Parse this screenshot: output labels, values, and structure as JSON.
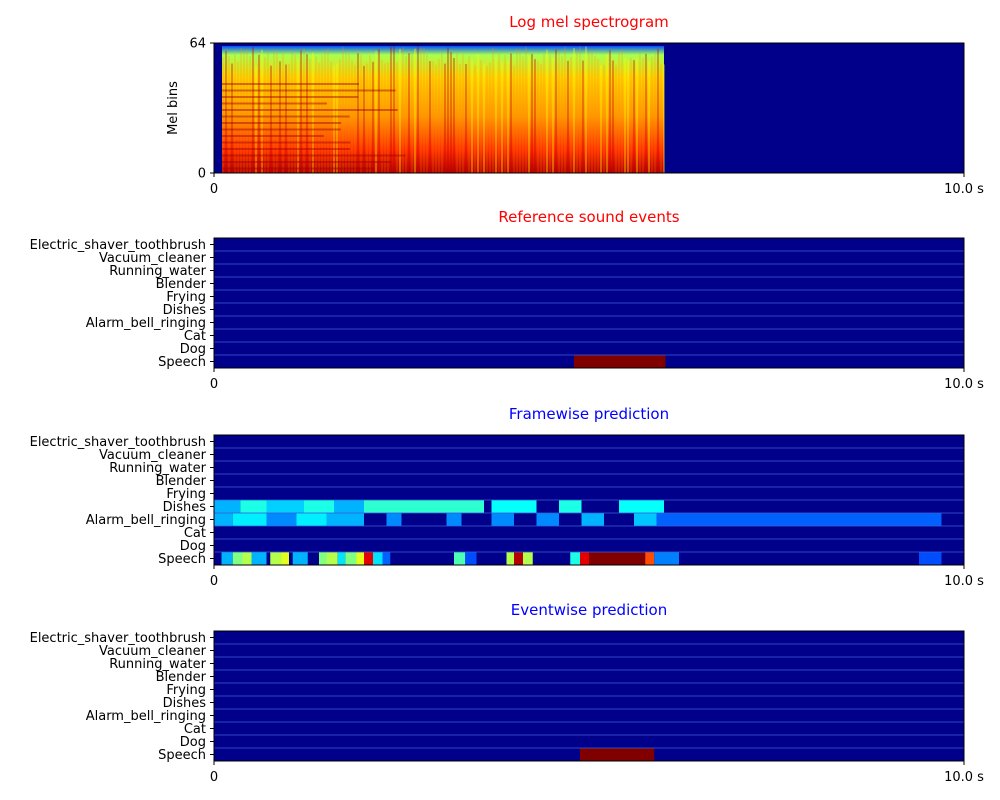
{
  "colors": {
    "background": "#00008b",
    "row_line": "#3d5bd4",
    "title_reference": "#ff0000",
    "title_prediction": "#0000ff",
    "axis": "#000000",
    "text": "#000000"
  },
  "chart_data": [
    {
      "type": "heatmap",
      "title": "Log mel spectrogram",
      "ylabel": "Mel bins",
      "yticks": [
        "64",
        "0"
      ],
      "xticks": [
        "0",
        "10.0 s"
      ],
      "xlim": [
        0,
        10.0
      ],
      "ylim": [
        0,
        64
      ],
      "audio_end_s": 6.0,
      "content": "spectrogram energy present from 0 s to ~6.0 s, silence (minimum) afterwards"
    },
    {
      "type": "heatmap",
      "title": "Reference sound events",
      "categories": [
        "Electric_shaver_toothbrush",
        "Vacuum_cleaner",
        "Running_water",
        "Blender",
        "Frying",
        "Dishes",
        "Alarm_bell_ringing",
        "Cat",
        "Dog",
        "Speech"
      ],
      "xticks": [
        "0",
        "10.0 s"
      ],
      "xlim": [
        0,
        10.0
      ],
      "events": [
        {
          "label": "Speech",
          "start": 4.8,
          "end": 6.02,
          "value": 1.0
        }
      ]
    },
    {
      "type": "heatmap",
      "title": "Framewise prediction",
      "categories": [
        "Electric_shaver_toothbrush",
        "Vacuum_cleaner",
        "Running_water",
        "Blender",
        "Frying",
        "Dishes",
        "Alarm_bell_ringing",
        "Cat",
        "Dog",
        "Speech"
      ],
      "xticks": [
        "0",
        "10.0 s"
      ],
      "xlim": [
        0,
        10.0
      ],
      "events": [
        {
          "label": "Dishes",
          "start": 0.0,
          "end": 0.35,
          "value": 0.3
        },
        {
          "label": "Dishes",
          "start": 0.35,
          "end": 0.7,
          "value": 0.4
        },
        {
          "label": "Dishes",
          "start": 0.7,
          "end": 1.2,
          "value": 0.33
        },
        {
          "label": "Dishes",
          "start": 1.2,
          "end": 1.6,
          "value": 0.4
        },
        {
          "label": "Dishes",
          "start": 1.6,
          "end": 2.0,
          "value": 0.3
        },
        {
          "label": "Dishes",
          "start": 2.0,
          "end": 3.6,
          "value": 0.42
        },
        {
          "label": "Dishes",
          "start": 3.7,
          "end": 4.3,
          "value": 0.38
        },
        {
          "label": "Dishes",
          "start": 4.6,
          "end": 4.9,
          "value": 0.4
        },
        {
          "label": "Dishes",
          "start": 5.4,
          "end": 6.0,
          "value": 0.38
        },
        {
          "label": "Alarm_bell_ringing",
          "start": 0.0,
          "end": 0.25,
          "value": 0.3
        },
        {
          "label": "Alarm_bell_ringing",
          "start": 0.25,
          "end": 0.7,
          "value": 0.36
        },
        {
          "label": "Alarm_bell_ringing",
          "start": 0.7,
          "end": 1.1,
          "value": 0.26
        },
        {
          "label": "Alarm_bell_ringing",
          "start": 1.1,
          "end": 1.5,
          "value": 0.36
        },
        {
          "label": "Alarm_bell_ringing",
          "start": 1.5,
          "end": 2.0,
          "value": 0.3
        },
        {
          "label": "Alarm_bell_ringing",
          "start": 2.3,
          "end": 2.5,
          "value": 0.26
        },
        {
          "label": "Alarm_bell_ringing",
          "start": 3.1,
          "end": 3.3,
          "value": 0.26
        },
        {
          "label": "Alarm_bell_ringing",
          "start": 3.7,
          "end": 4.0,
          "value": 0.26
        },
        {
          "label": "Alarm_bell_ringing",
          "start": 4.3,
          "end": 4.6,
          "value": 0.26
        },
        {
          "label": "Alarm_bell_ringing",
          "start": 4.9,
          "end": 5.2,
          "value": 0.3
        },
        {
          "label": "Alarm_bell_ringing",
          "start": 5.6,
          "end": 5.9,
          "value": 0.32
        },
        {
          "label": "Alarm_bell_ringing",
          "start": 5.9,
          "end": 9.7,
          "value": 0.22
        },
        {
          "label": "Speech",
          "start": 0.1,
          "end": 0.25,
          "value": 0.3
        },
        {
          "label": "Speech",
          "start": 0.25,
          "end": 0.38,
          "value": 0.5
        },
        {
          "label": "Speech",
          "start": 0.38,
          "end": 0.5,
          "value": 0.55
        },
        {
          "label": "Speech",
          "start": 0.5,
          "end": 0.7,
          "value": 0.3
        },
        {
          "label": "Speech",
          "start": 0.75,
          "end": 0.9,
          "value": 0.55
        },
        {
          "label": "Speech",
          "start": 0.9,
          "end": 1.0,
          "value": 0.6
        },
        {
          "label": "Speech",
          "start": 1.05,
          "end": 1.25,
          "value": 0.3
        },
        {
          "label": "Speech",
          "start": 1.4,
          "end": 1.5,
          "value": 0.5
        },
        {
          "label": "Speech",
          "start": 1.5,
          "end": 1.65,
          "value": 0.55
        },
        {
          "label": "Speech",
          "start": 1.65,
          "end": 1.75,
          "value": 0.35
        },
        {
          "label": "Speech",
          "start": 1.75,
          "end": 1.9,
          "value": 0.5
        },
        {
          "label": "Speech",
          "start": 1.9,
          "end": 2.0,
          "value": 0.6
        },
        {
          "label": "Speech",
          "start": 2.0,
          "end": 2.12,
          "value": 0.9
        },
        {
          "label": "Speech",
          "start": 2.12,
          "end": 2.25,
          "value": 0.35
        },
        {
          "label": "Speech",
          "start": 2.25,
          "end": 2.35,
          "value": 0.22
        },
        {
          "label": "Speech",
          "start": 3.2,
          "end": 3.35,
          "value": 0.45
        },
        {
          "label": "Speech",
          "start": 3.35,
          "end": 3.5,
          "value": 0.2
        },
        {
          "label": "Speech",
          "start": 3.9,
          "end": 4.0,
          "value": 0.55
        },
        {
          "label": "Speech",
          "start": 4.0,
          "end": 4.12,
          "value": 0.95
        },
        {
          "label": "Speech",
          "start": 4.12,
          "end": 4.25,
          "value": 0.55
        },
        {
          "label": "Speech",
          "start": 4.75,
          "end": 4.88,
          "value": 0.4
        },
        {
          "label": "Speech",
          "start": 4.88,
          "end": 5.0,
          "value": 0.9
        },
        {
          "label": "Speech",
          "start": 5.0,
          "end": 5.12,
          "value": 1.0
        },
        {
          "label": "Speech",
          "start": 5.12,
          "end": 5.75,
          "value": 1.0
        },
        {
          "label": "Speech",
          "start": 5.75,
          "end": 5.87,
          "value": 0.8
        },
        {
          "label": "Speech",
          "start": 5.87,
          "end": 6.2,
          "value": 0.25
        },
        {
          "label": "Speech",
          "start": 9.4,
          "end": 9.7,
          "value": 0.2
        }
      ]
    },
    {
      "type": "heatmap",
      "title": "Eventwise prediction",
      "categories": [
        "Electric_shaver_toothbrush",
        "Vacuum_cleaner",
        "Running_water",
        "Blender",
        "Frying",
        "Dishes",
        "Alarm_bell_ringing",
        "Cat",
        "Dog",
        "Speech"
      ],
      "xticks": [
        "0",
        "10.0 s"
      ],
      "xlim": [
        0,
        10.0
      ],
      "events": [
        {
          "label": "Speech",
          "start": 4.88,
          "end": 5.87,
          "value": 1.0
        }
      ]
    }
  ]
}
